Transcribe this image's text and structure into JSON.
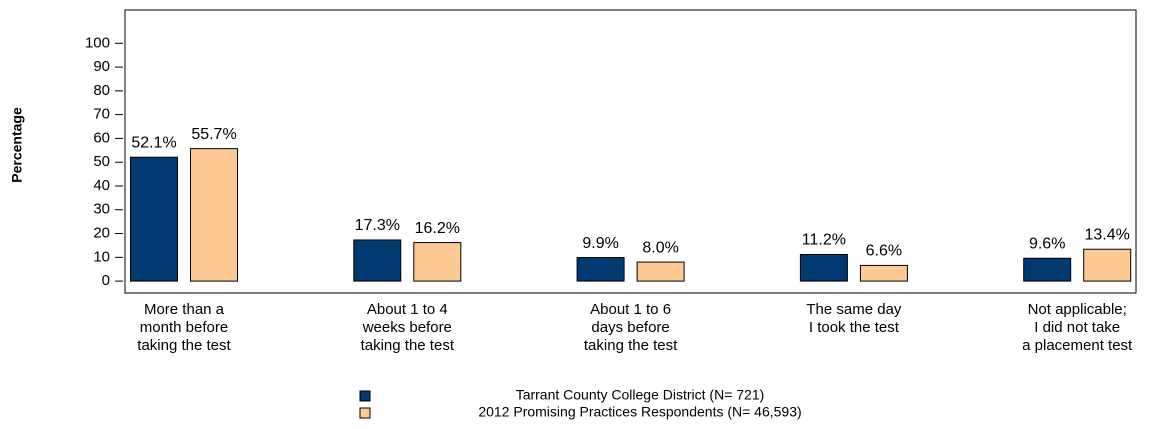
{
  "chart_data": {
    "type": "bar",
    "y_label": "Percentage",
    "categories": [
      [
        "More than a",
        "month before",
        "taking the test"
      ],
      [
        "About 1 to 4",
        "weeks before",
        "taking the test"
      ],
      [
        "About 1 to 6",
        "days before",
        "taking the test"
      ],
      [
        "The same day",
        "I took the test"
      ],
      [
        "Not applicable;",
        "I did not take",
        "a placement test"
      ]
    ],
    "series": [
      {
        "name": "Tarrant County College District  (N= 721)",
        "color": "#003a70",
        "values": [
          52.1,
          17.3,
          9.9,
          11.2,
          9.6
        ],
        "value_labels": [
          "52.1%",
          "17.3%",
          "9.9%",
          "11.2%",
          "9.6%"
        ]
      },
      {
        "name": "2012 Promising Practices Respondents (N= 46,593)",
        "color": "#ffc993",
        "values": [
          55.7,
          16.2,
          8.0,
          6.6,
          13.4
        ],
        "value_labels": [
          "55.7%",
          "16.2%",
          "8.0%",
          "6.6%",
          "13.4%"
        ]
      }
    ],
    "ylim": [
      -5,
      114
    ],
    "yticks": [
      0,
      10,
      20,
      30,
      40,
      50,
      60,
      70,
      80,
      90,
      100
    ]
  }
}
